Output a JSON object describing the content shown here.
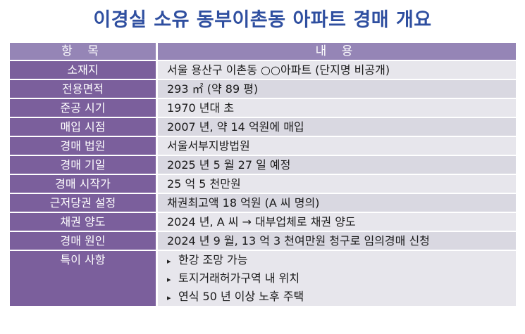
{
  "title": "이경실 소유 동부이촌동 아파트 경매 개요",
  "header": {
    "item": "항 목",
    "content": "내 용"
  },
  "rows": [
    {
      "key": "소재지",
      "value": "서울 용산구 이촌동 ○○아파트 (단지명 비공개)"
    },
    {
      "key": "전용면적",
      "value": "293 ㎡ (약 89 평)"
    },
    {
      "key": "준공 시기",
      "value": "1970 년대 초"
    },
    {
      "key": "매입 시점",
      "value": "2007 년, 약 14 억원에 매입"
    },
    {
      "key": "경매 법원",
      "value": "서울서부지방법원"
    },
    {
      "key": "경매 기일",
      "value": "2025 년 5 월 27 일 예정"
    },
    {
      "key": "경매 시작가",
      "value": "25 억 5 천만원"
    },
    {
      "key": "근저당권 설정",
      "value": "채권최고액 18 억원 (A 씨 명의)"
    },
    {
      "key": "채권 양도",
      "value": "2024 년, A 씨 → 대부업체로 채권 양도"
    },
    {
      "key": "경매 원인",
      "value": "2024 년 9 월, 13 억 3 천여만원 청구로 임의경매 신청"
    }
  ],
  "special": {
    "key": "특이 사항",
    "bullet": "▸",
    "items": [
      "한강 조망 가능",
      "토지거래허가구역 내 위치",
      "연식 50 년 이상 노후 주택"
    ]
  },
  "colors": {
    "title": "#2f4fa0",
    "header_bg": "#9585b6",
    "key_bg": "#7b5f9c",
    "value_bg": "#e7e6ec",
    "value_bg_alt": "#d9d8e1"
  }
}
